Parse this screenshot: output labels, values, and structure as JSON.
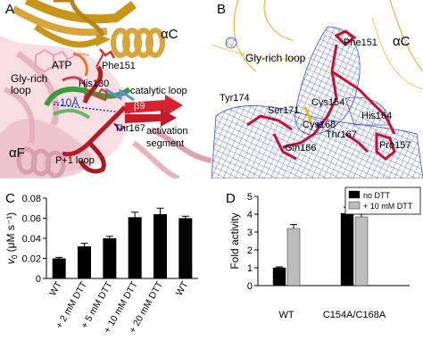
{
  "panels": {
    "A": {
      "label": "A",
      "labels": {
        "alphaC": "αC",
        "atp": "ATP",
        "phe151": "Phe151",
        "gly_rich_loop": "Gly-rich\nloop",
        "his130": "His130",
        "catalytic_loop": "catalytic loop",
        "distance": "~10Å",
        "beta9": "β9",
        "thr167": "Thr167",
        "activation_segment": "activation\nsegment",
        "alphaF": "αF",
        "p1_loop": "P+1 loop"
      }
    },
    "B": {
      "label": "B",
      "labels": {
        "phe151": "Phe151",
        "alphaC": "αC",
        "gly_rich_loop": "Gly-rich loop",
        "tyr174": "Tyr174",
        "ser171": "Ser171",
        "cys154": "Cys154",
        "cys168": "Cys168",
        "his164": "His164",
        "thr167": "Thr167",
        "gln166": "Gln166",
        "pro157": "Pro157"
      }
    },
    "C": {
      "label": "C",
      "chart_data": {
        "type": "bar",
        "ylabel": "v0 (μM s⁻¹)",
        "ylim": [
          0,
          0.08
        ],
        "yticks": [
          0,
          0.02,
          0.04,
          0.06,
          0.08
        ],
        "categories": [
          "WT",
          "+ 2 mM DTT",
          "+ 5 mM DTT",
          "+ 10 mM DTT",
          "+ 20 mM DTT",
          "WT"
        ],
        "values": [
          0.02,
          0.032,
          0.04,
          0.061,
          0.064,
          0.06
        ],
        "errors": [
          0.001,
          0.003,
          0.002,
          0.005,
          0.006,
          0.002
        ],
        "bar_color": "#000000"
      }
    },
    "D": {
      "label": "D",
      "chart_data": {
        "type": "bar",
        "ylabel": "Fold activity",
        "ylim": [
          0,
          5
        ],
        "yticks": [
          0,
          1,
          2,
          3,
          4,
          5
        ],
        "categories": [
          "WT",
          "C154A/C168A"
        ],
        "series": [
          {
            "name": "no DTT",
            "values": [
              1.0,
              4.05
            ],
            "errors": [
              0.05,
              0.35
            ],
            "color": "#000000"
          },
          {
            "name": "+ 10 mM DTT",
            "values": [
              3.2,
              3.85
            ],
            "errors": [
              0.22,
              0.15
            ],
            "color": "#bdbdbd"
          }
        ],
        "legend": "top-right"
      }
    }
  }
}
